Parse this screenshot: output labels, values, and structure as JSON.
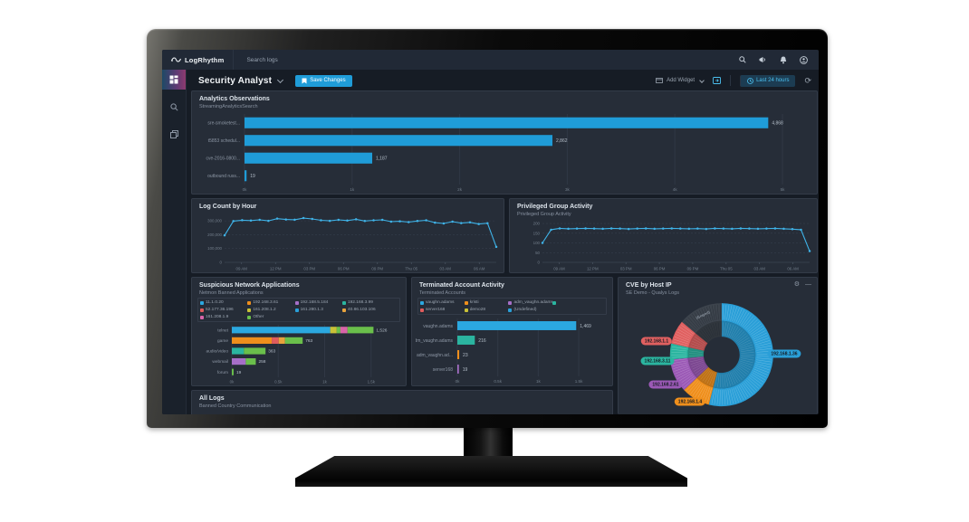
{
  "topnav": {
    "brand": "LogRhythm",
    "search": "Search logs"
  },
  "sidebar": {
    "items": [
      "dashboards",
      "search",
      "cases"
    ]
  },
  "toolbar": {
    "title": "Security Analyst",
    "save": "Save Changes",
    "add_widget": "Add Widget",
    "time_range": "Last 24 hours"
  },
  "panels": {
    "all_logs": {
      "title": "All Logs",
      "subtitle": "Banned Country Communication"
    }
  },
  "colors": {
    "accent": "#1f9cd8",
    "line": "#3fb3e8"
  },
  "chart_data": [
    {
      "id": "analytics-observations",
      "type": "bar",
      "title": "Analytics Observations",
      "subtitle": "StreamingAnalyticsSearch",
      "categories": [
        "sre-smoketest...",
        "t5853 schedul...",
        "cve-2016-0800...",
        "outbound russ..."
      ],
      "values": [
        4868,
        2862,
        1187,
        19
      ],
      "value_labels": [
        "4,868",
        "2,862",
        "1,187",
        "19"
      ],
      "xlim": [
        0,
        5000
      ],
      "x_ticks": [
        "0k",
        "1k",
        "2k",
        "3k",
        "4k",
        "5k"
      ],
      "x_ticks_vals": [
        0,
        1000,
        2000,
        3000,
        4000,
        5000
      ],
      "bar_color": "#1f9cd8",
      "legend_position": "none",
      "grid": true
    },
    {
      "id": "log-count-by-hour",
      "type": "line",
      "title": "Log Count by Hour",
      "x_ticks": [
        "09 AM",
        "12 PM",
        "03 PM",
        "06 PM",
        "09 PM",
        "Thu 05",
        "03 AM",
        "06 AM"
      ],
      "y_ticks": [
        0,
        100000,
        200000,
        300000
      ],
      "y_tick_labels": [
        "0",
        "100,000",
        "200,000",
        "300,000"
      ],
      "ylim": [
        0,
        340000
      ],
      "values": [
        195000,
        298000,
        305000,
        302000,
        307000,
        300000,
        316000,
        310000,
        308000,
        320000,
        314000,
        304000,
        300000,
        307000,
        302000,
        311000,
        299000,
        304000,
        307000,
        294000,
        297000,
        291000,
        299000,
        304000,
        287000,
        281000,
        294000,
        284000,
        289000,
        277000,
        283000,
        112000
      ],
      "line_color": "#3fb3e8",
      "grid": true
    },
    {
      "id": "privileged-group-activity",
      "type": "line",
      "title": "Privileged Group Activity",
      "subtitle": "Privileged Group Activity",
      "x_ticks": [
        "09 AM",
        "12 PM",
        "03 PM",
        "06 PM",
        "09 PM",
        "Thu 05",
        "03 AM",
        "06 AM"
      ],
      "y_ticks": [
        0,
        50,
        100,
        150,
        200
      ],
      "y_tick_labels": [
        "0",
        "50",
        "100",
        "150",
        "200"
      ],
      "ylim": [
        0,
        205
      ],
      "values": [
        100,
        168,
        175,
        173,
        174,
        175,
        174,
        173,
        175,
        174,
        172,
        174,
        175,
        173,
        174,
        175,
        174,
        173,
        174,
        172,
        175,
        174,
        173,
        175,
        174,
        173,
        174,
        175,
        173,
        171,
        168,
        58
      ],
      "line_color": "#3fb3e8",
      "grid": true
    },
    {
      "id": "suspicious-network-applications",
      "type": "stacked_bar",
      "title": "Suspicious Network Applications",
      "subtitle": "Netmon Banned Applications",
      "legend": [
        {
          "label": "11.1.0.20",
          "color": "#2ba8e0"
        },
        {
          "label": "192.168.3.61",
          "color": "#ef8f1c"
        },
        {
          "label": "192.168.5.184",
          "color": "#a66fc8"
        },
        {
          "label": "192.168.3.99",
          "color": "#2bb5a0"
        },
        {
          "label": "52.177.36.196",
          "color": "#e05c5c"
        },
        {
          "label": "161.208.1.2",
          "color": "#c9c137"
        },
        {
          "label": "161.280.1.3",
          "color": "#2a9fd8"
        },
        {
          "label": "40.86.103.106",
          "color": "#e8a33d"
        },
        {
          "label": "161.208.1.9",
          "color": "#d964a8"
        },
        {
          "label": "Other",
          "color": "#6abf4b"
        }
      ],
      "categories": [
        "telnet",
        "game",
        "audio/video",
        "webmail",
        "forum"
      ],
      "totals": [
        "1,526",
        "763",
        "363",
        "258",
        "19"
      ],
      "bars": [
        [
          [
            "#2ba8e0",
            1060
          ],
          [
            "#c9c137",
            70
          ],
          [
            "#6abf4b",
            40
          ],
          [
            "#d964a8",
            76
          ],
          [
            "#6abf4b",
            280
          ]
        ],
        [
          [
            "#ef8f1c",
            430
          ],
          [
            "#e05c5c",
            75
          ],
          [
            "#e8a33d",
            68
          ],
          [
            "#6abf4b",
            190
          ]
        ],
        [
          [
            "#2bb5a0",
            130
          ],
          [
            "#6abf4b",
            233
          ]
        ],
        [
          [
            "#a66fc8",
            150
          ],
          [
            "#6abf4b",
            108
          ]
        ],
        [
          [
            "#6abf4b",
            19
          ]
        ]
      ],
      "xlim": [
        0,
        1600
      ],
      "x_ticks": [
        "0k",
        "0.5k",
        "1k",
        "1.5k"
      ],
      "x_ticks_vals": [
        0,
        500,
        1000,
        1500
      ],
      "legend_position": "top",
      "grid": true
    },
    {
      "id": "terminated-account-activity",
      "type": "bar",
      "title": "Terminated Account Activity",
      "subtitle": "Terminated Accounts",
      "legend": [
        {
          "label": "vaughn.adams",
          "color": "#2ba8e0"
        },
        {
          "label": "kristi",
          "color": "#ef8f1c"
        },
        {
          "label": "adm_vaughn.adams",
          "color": "#a66fc8"
        },
        {
          "label": "",
          "color": "#2bb5a0"
        },
        {
          "label": "server168",
          "color": "#e05c5c"
        },
        {
          "label": "demo28",
          "color": "#c9c137"
        },
        {
          "label": "(Undefined)",
          "color": "#2a9fd8"
        }
      ],
      "categories": [
        "vaughn.adams",
        "adm_vaughn.adams",
        "adm_vaughn.ad...",
        "server168"
      ],
      "values": [
        1469,
        216,
        23,
        19
      ],
      "value_labels": [
        "1,469",
        "216",
        "23",
        "19"
      ],
      "bar_colors": [
        "#2ba8e0",
        "#2bb5a0",
        "#ef8f1c",
        "#a66fc8"
      ],
      "xlim": [
        0,
        1600
      ],
      "x_ticks": [
        "0k",
        "0.5k",
        "1k",
        "1.5k"
      ],
      "x_ticks_vals": [
        0,
        500,
        1000,
        1500
      ],
      "legend_position": "top",
      "grid": true
    },
    {
      "id": "cve-by-host-ip",
      "type": "sunburst",
      "title": "CVE by Host IP",
      "subtitle": "SE Demo - Qualys Logs",
      "segments": [
        {
          "label": "192.168.1.36",
          "color": "#2a9fd8",
          "pct": 54
        },
        {
          "label": "192.168.1.4",
          "color": "#ef8f1c",
          "pct": 9
        },
        {
          "label": "192.168.2.61",
          "color": "#9b59b6",
          "pct": 10.5
        },
        {
          "label": "192.168.3.11",
          "color": "#2bb5a0",
          "pct": 5
        },
        {
          "label": "192.168.1.1",
          "color": "#e06060",
          "pct": 7.5
        },
        {
          "label": "(Grayed)",
          "color": "#3d444d",
          "pct": 14
        }
      ]
    }
  ]
}
